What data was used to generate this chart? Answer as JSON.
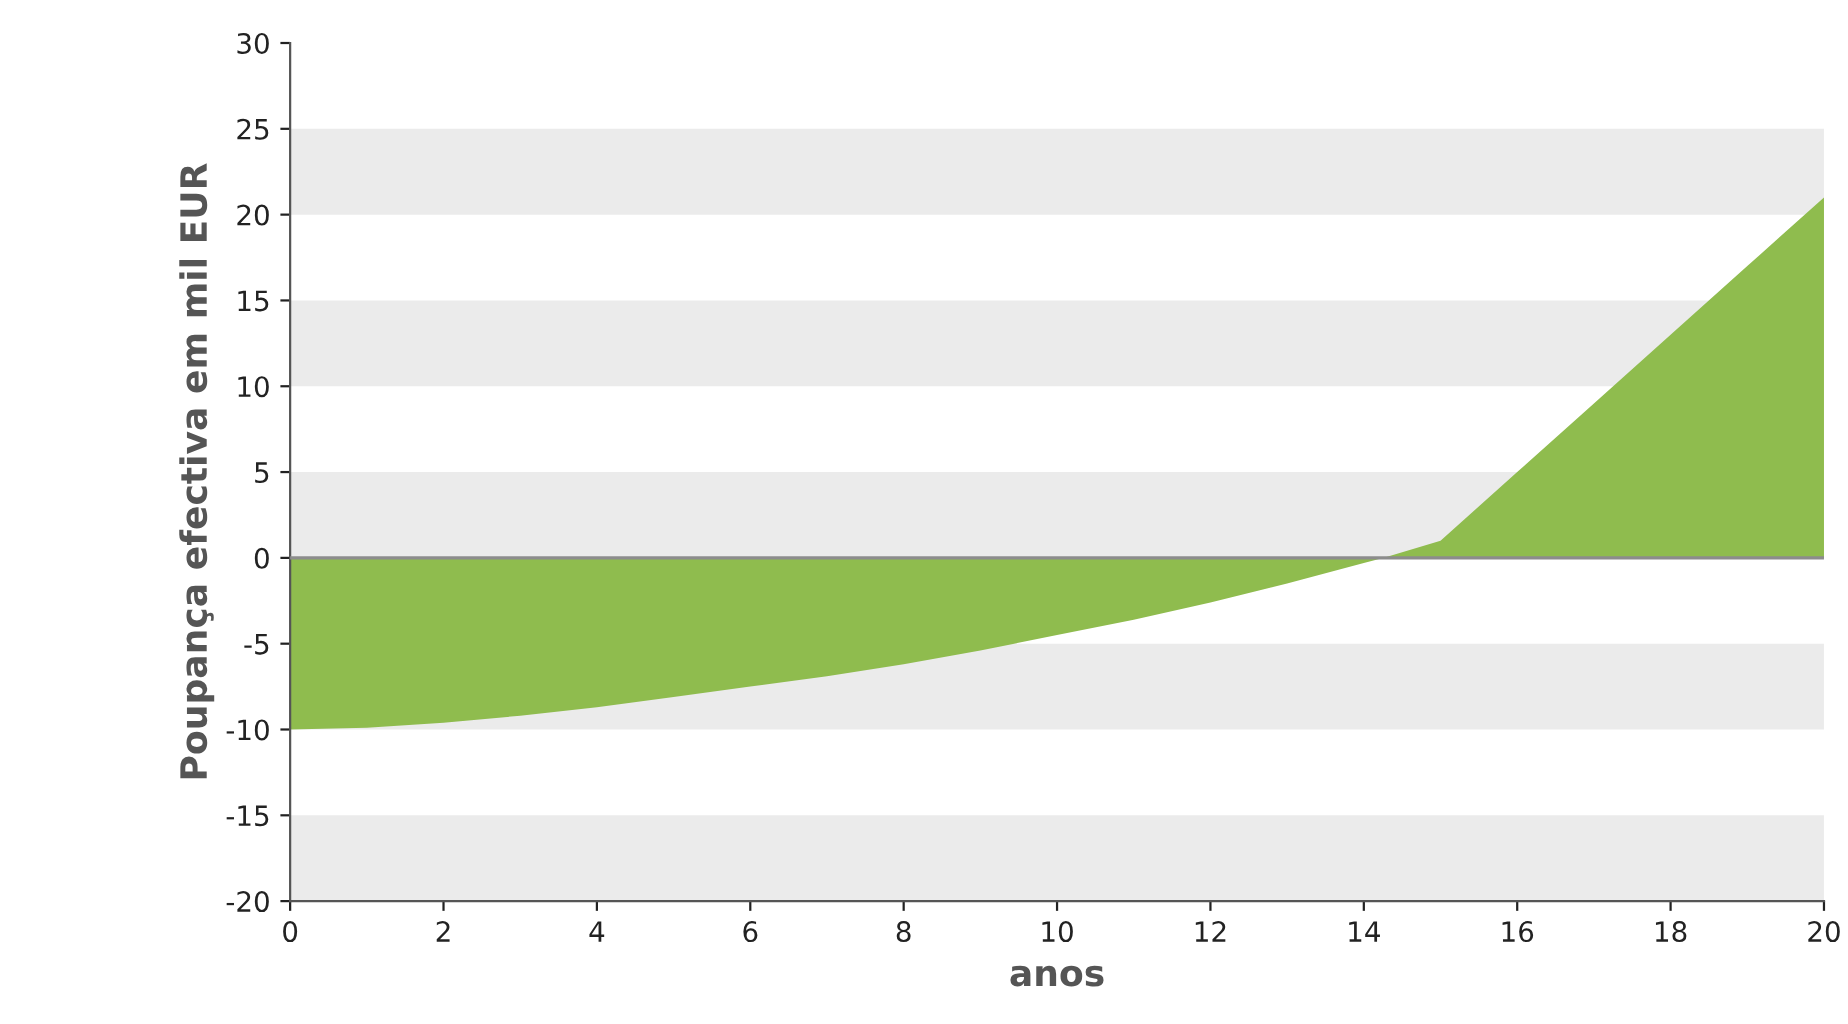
{
  "chart_data": {
    "type": "area",
    "xlabel": "anos",
    "ylabel": "Poupança efectiva em mil EUR",
    "x": [
      0,
      1,
      2,
      3,
      4,
      5,
      6,
      7,
      8,
      9,
      10,
      11,
      12,
      13,
      14,
      14.25,
      15,
      16,
      17,
      18,
      19,
      20
    ],
    "series": [
      {
        "color": "#8fbc4e",
        "values": [
          -10,
          -9.9,
          -9.6,
          -9.2,
          -8.7,
          -8.1,
          -7.5,
          -6.9,
          -6.2,
          -5.4,
          -4.5,
          -3.6,
          -2.6,
          -1.5,
          -0.3,
          0,
          1,
          5,
          9,
          13,
          17,
          21
        ]
      }
    ],
    "xlim": [
      0,
      20
    ],
    "xticks": [
      0,
      2,
      4,
      6,
      8,
      10,
      12,
      14,
      16,
      18,
      20
    ],
    "ylim": [
      -20,
      30
    ],
    "yticks": [
      -20,
      -15,
      -10,
      -5,
      0,
      5,
      10,
      15,
      20,
      25,
      30
    ],
    "bands": [
      {
        "axis": "y",
        "from": 20,
        "to": 25,
        "color": "#ebebeb"
      },
      {
        "axis": "y",
        "from": 10,
        "to": 15,
        "color": "#ebebeb"
      },
      {
        "axis": "y",
        "from": 0,
        "to": 5,
        "color": "#ebebeb"
      },
      {
        "axis": "y",
        "from": -10,
        "to": -5,
        "color": "#ebebeb"
      },
      {
        "axis": "y",
        "from": -20,
        "to": -15,
        "color": "#ebebeb"
      }
    ],
    "ref_lines": [
      {
        "axis": "y",
        "value": 0,
        "color": "#8c8c8c"
      }
    ],
    "grid": false,
    "legend": false
  }
}
